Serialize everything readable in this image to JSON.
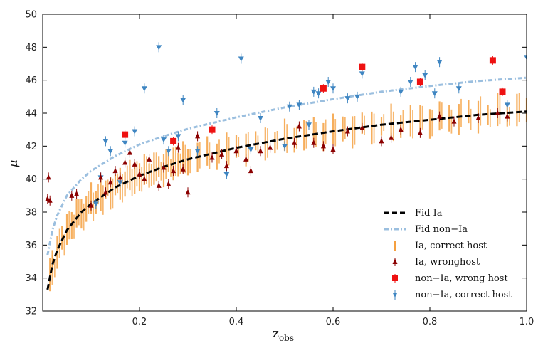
{
  "chart_data": {
    "type": "scatter",
    "xlabel": "z",
    "xlabel_sub": "obs",
    "ylabel": "μ",
    "xlim": [
      0.0,
      1.0
    ],
    "ylim": [
      32,
      50
    ],
    "xticks": [
      0.2,
      0.4,
      0.6,
      0.8,
      1.0
    ],
    "xtick_labels": [
      "0.2",
      "0.4",
      "0.6",
      "0.8",
      "1.0"
    ],
    "yticks": [
      32,
      34,
      36,
      38,
      40,
      42,
      44,
      46,
      48,
      50
    ],
    "ytick_labels": [
      "32",
      "34",
      "36",
      "38",
      "40",
      "42",
      "44",
      "46",
      "48",
      "50"
    ],
    "legend_position": "lower-right",
    "colors": {
      "fid_ia": "#000000",
      "fid_nonia": "#9bbfdf",
      "ia_correct": "#f5a040",
      "ia_wrong": "#8b0000",
      "nonia_wrong": "#ee1111",
      "nonia_correct": "#3f86c2"
    },
    "legend": [
      "Fid Ia",
      "Fid non−Ia",
      "Ia, correct host",
      "Ia, wronghost",
      "non−Ia, wrong host",
      "non−Ia, correct host"
    ],
    "curves": {
      "fid_ia": {
        "name": "Fid Ia",
        "x": [
          0.01,
          0.02,
          0.03,
          0.05,
          0.08,
          0.1,
          0.15,
          0.2,
          0.25,
          0.3,
          0.4,
          0.5,
          0.6,
          0.7,
          0.8,
          0.9,
          1.0
        ],
        "y": [
          33.3,
          34.8,
          35.7,
          36.9,
          38.0,
          38.5,
          39.5,
          40.2,
          40.75,
          41.2,
          41.9,
          42.45,
          42.9,
          43.3,
          43.6,
          43.9,
          44.1
        ]
      },
      "fid_nonia": {
        "name": "Fid non−Ia",
        "x": [
          0.01,
          0.02,
          0.03,
          0.05,
          0.08,
          0.1,
          0.15,
          0.2,
          0.25,
          0.3,
          0.4,
          0.5,
          0.6,
          0.7,
          0.8,
          0.9,
          1.0
        ],
        "y": [
          35.4,
          36.9,
          37.8,
          39.0,
          40.0,
          40.5,
          41.4,
          42.1,
          42.6,
          43.05,
          43.75,
          44.35,
          44.85,
          45.3,
          45.65,
          45.95,
          46.15
        ]
      }
    },
    "series": [
      {
        "name": "Ia, correct host",
        "points": [
          [
            0.015,
            34.2
          ],
          [
            0.02,
            34.9
          ],
          [
            0.03,
            35.8
          ],
          [
            0.04,
            36.3
          ],
          [
            0.05,
            36.9
          ],
          [
            0.06,
            37.4
          ],
          [
            0.07,
            37.7
          ],
          [
            0.08,
            38.0
          ],
          [
            0.09,
            38.3
          ],
          [
            0.1,
            38.6
          ],
          [
            0.11,
            38.8
          ],
          [
            0.12,
            39.0
          ],
          [
            0.13,
            39.2
          ],
          [
            0.14,
            39.4
          ],
          [
            0.15,
            39.5
          ],
          [
            0.16,
            39.7
          ],
          [
            0.17,
            39.9
          ],
          [
            0.18,
            40.0
          ],
          [
            0.19,
            40.1
          ],
          [
            0.2,
            40.2
          ],
          [
            0.21,
            40.35
          ],
          [
            0.22,
            40.45
          ],
          [
            0.23,
            40.55
          ],
          [
            0.24,
            40.65
          ],
          [
            0.25,
            40.75
          ],
          [
            0.26,
            40.85
          ],
          [
            0.27,
            40.95
          ],
          [
            0.28,
            41.05
          ],
          [
            0.29,
            41.1
          ],
          [
            0.3,
            41.2
          ],
          [
            0.32,
            41.35
          ],
          [
            0.34,
            41.5
          ],
          [
            0.36,
            41.6
          ],
          [
            0.38,
            41.75
          ],
          [
            0.4,
            41.9
          ],
          [
            0.42,
            42.0
          ],
          [
            0.44,
            42.1
          ],
          [
            0.46,
            42.2
          ],
          [
            0.48,
            42.35
          ],
          [
            0.5,
            42.45
          ],
          [
            0.52,
            42.55
          ],
          [
            0.54,
            42.65
          ],
          [
            0.56,
            42.75
          ],
          [
            0.58,
            42.8
          ],
          [
            0.6,
            42.9
          ],
          [
            0.62,
            43.0
          ],
          [
            0.64,
            43.05
          ],
          [
            0.66,
            43.15
          ],
          [
            0.68,
            43.2
          ],
          [
            0.7,
            43.3
          ],
          [
            0.72,
            43.35
          ],
          [
            0.74,
            43.4
          ],
          [
            0.76,
            43.5
          ],
          [
            0.78,
            43.55
          ],
          [
            0.8,
            43.6
          ],
          [
            0.82,
            43.65
          ],
          [
            0.84,
            43.7
          ],
          [
            0.86,
            43.8
          ],
          [
            0.88,
            43.85
          ],
          [
            0.9,
            43.9
          ],
          [
            0.92,
            43.95
          ],
          [
            0.94,
            44.0
          ],
          [
            0.96,
            44.05
          ],
          [
            0.98,
            44.1
          ],
          [
            1.0,
            44.1
          ]
        ]
      },
      {
        "name": "Ia, wronghost",
        "points": [
          [
            0.01,
            38.8
          ],
          [
            0.012,
            40.1
          ],
          [
            0.015,
            38.7
          ],
          [
            0.06,
            39.0
          ],
          [
            0.07,
            39.1
          ],
          [
            0.1,
            38.4
          ],
          [
            0.12,
            40.1
          ],
          [
            0.13,
            39.2
          ],
          [
            0.14,
            39.8
          ],
          [
            0.15,
            40.5
          ],
          [
            0.16,
            40.1
          ],
          [
            0.17,
            41.0
          ],
          [
            0.18,
            41.6
          ],
          [
            0.19,
            40.9
          ],
          [
            0.2,
            40.3
          ],
          [
            0.21,
            40.0
          ],
          [
            0.22,
            41.2
          ],
          [
            0.24,
            39.6
          ],
          [
            0.25,
            40.7
          ],
          [
            0.26,
            39.7
          ],
          [
            0.27,
            40.5
          ],
          [
            0.28,
            41.9
          ],
          [
            0.29,
            40.6
          ],
          [
            0.3,
            39.2
          ],
          [
            0.32,
            42.6
          ],
          [
            0.35,
            41.3
          ],
          [
            0.37,
            41.5
          ],
          [
            0.38,
            40.8
          ],
          [
            0.4,
            41.7
          ],
          [
            0.42,
            41.2
          ],
          [
            0.43,
            40.5
          ],
          [
            0.45,
            41.7
          ],
          [
            0.47,
            41.9
          ],
          [
            0.52,
            42.2
          ],
          [
            0.53,
            43.2
          ],
          [
            0.56,
            42.2
          ],
          [
            0.58,
            42.0
          ],
          [
            0.6,
            41.8
          ],
          [
            0.63,
            42.9
          ],
          [
            0.66,
            43.1
          ],
          [
            0.7,
            42.3
          ],
          [
            0.72,
            42.5
          ],
          [
            0.74,
            43.0
          ],
          [
            0.78,
            42.8
          ],
          [
            0.82,
            43.8
          ],
          [
            0.85,
            43.5
          ],
          [
            0.9,
            43.7
          ],
          [
            0.94,
            44.0
          ],
          [
            0.96,
            43.8
          ]
        ]
      },
      {
        "name": "non−Ia, wrong host",
        "points": [
          [
            0.17,
            42.7
          ],
          [
            0.27,
            42.3
          ],
          [
            0.35,
            43.0
          ],
          [
            0.58,
            45.5
          ],
          [
            0.66,
            46.8
          ],
          [
            0.78,
            45.9
          ],
          [
            0.93,
            47.2
          ],
          [
            0.95,
            45.3
          ]
        ]
      },
      {
        "name": "non−Ia, correct host",
        "points": [
          [
            0.11,
            38.5
          ],
          [
            0.12,
            40.1
          ],
          [
            0.13,
            42.3
          ],
          [
            0.14,
            41.7
          ],
          [
            0.16,
            39.8
          ],
          [
            0.17,
            42.2
          ],
          [
            0.19,
            42.9
          ],
          [
            0.21,
            45.5
          ],
          [
            0.24,
            48.0
          ],
          [
            0.25,
            42.4
          ],
          [
            0.26,
            41.7
          ],
          [
            0.28,
            42.6
          ],
          [
            0.29,
            44.8
          ],
          [
            0.32,
            41.7
          ],
          [
            0.36,
            44.0
          ],
          [
            0.38,
            40.3
          ],
          [
            0.41,
            47.3
          ],
          [
            0.43,
            41.8
          ],
          [
            0.45,
            43.7
          ],
          [
            0.5,
            42.0
          ],
          [
            0.51,
            44.4
          ],
          [
            0.53,
            44.5
          ],
          [
            0.55,
            43.3
          ],
          [
            0.56,
            45.3
          ],
          [
            0.57,
            45.2
          ],
          [
            0.59,
            45.9
          ],
          [
            0.6,
            45.5
          ],
          [
            0.63,
            44.9
          ],
          [
            0.65,
            45.0
          ],
          [
            0.66,
            46.4
          ],
          [
            0.74,
            45.3
          ],
          [
            0.76,
            45.9
          ],
          [
            0.77,
            46.8
          ],
          [
            0.79,
            46.3
          ],
          [
            0.81,
            45.2
          ],
          [
            0.82,
            47.1
          ],
          [
            0.86,
            45.5
          ],
          [
            0.96,
            44.5
          ],
          [
            1.0,
            47.4
          ]
        ]
      }
    ]
  }
}
